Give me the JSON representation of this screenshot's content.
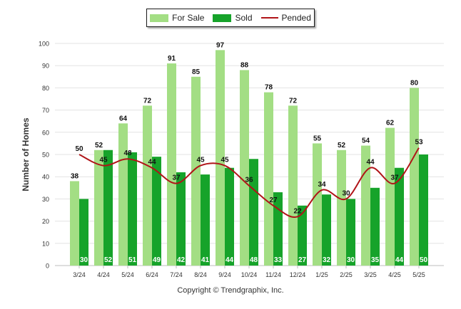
{
  "chart_data": {
    "type": "bar",
    "categories": [
      "3/24",
      "4/24",
      "5/24",
      "6/24",
      "7/24",
      "8/24",
      "9/24",
      "10/24",
      "11/24",
      "12/24",
      "1/25",
      "2/25",
      "3/25",
      "4/25",
      "5/25"
    ],
    "series": [
      {
        "name": "For Sale",
        "type": "bar",
        "color": "#a3de84",
        "values": [
          38,
          52,
          64,
          72,
          91,
          85,
          97,
          88,
          78,
          72,
          55,
          52,
          54,
          62,
          80
        ]
      },
      {
        "name": "Sold",
        "type": "bar",
        "color": "#16a32a",
        "values": [
          30,
          52,
          51,
          49,
          42,
          41,
          44,
          48,
          33,
          27,
          32,
          30,
          35,
          44,
          50
        ]
      },
      {
        "name": "Pended",
        "type": "line",
        "color": "#b01418",
        "values": [
          50,
          45,
          48,
          44,
          37,
          45,
          45,
          36,
          27,
          22,
          34,
          30,
          44,
          37,
          53
        ]
      }
    ],
    "ylabel": "Number of Homes",
    "xlabel": "",
    "ylim": [
      0,
      100
    ],
    "yticks": [
      0,
      10,
      20,
      30,
      40,
      50,
      60,
      70,
      80,
      90,
      100
    ],
    "grid": true,
    "legend_position": "top-center"
  },
  "copyright": "Copyright © Trendgraphix, Inc."
}
